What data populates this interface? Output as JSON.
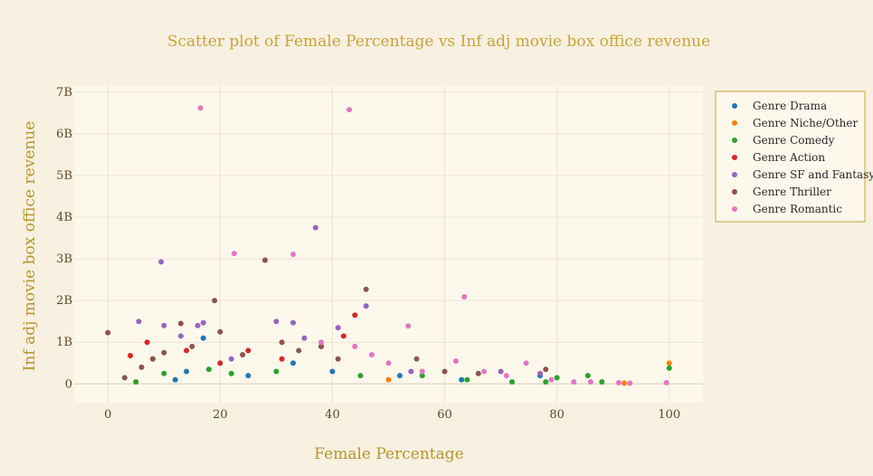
{
  "chart_data": {
    "type": "scatter",
    "title": "Scatter plot of Female Percentage vs Inf adj movie box office revenue",
    "xlabel": "Female Percentage",
    "ylabel": "Inf adj movie box office revenue",
    "xlim": [
      -6,
      106
    ],
    "ylim": [
      -0.45,
      7.15
    ],
    "x_ticks": [
      0,
      20,
      40,
      60,
      80,
      100
    ],
    "x_tick_labels": [
      "0",
      "20",
      "40",
      "60",
      "80",
      "100"
    ],
    "y_ticks": [
      0,
      1,
      2,
      3,
      4,
      5,
      6,
      7
    ],
    "y_tick_labels": [
      "0",
      "1B",
      "2B",
      "3B",
      "4B",
      "5B",
      "6B",
      "7B"
    ],
    "y_unit": "billions",
    "grid": true,
    "legend_position": "top-right",
    "series": [
      {
        "name": "Genre Drama",
        "color": "#1f77b4",
        "x": [
          12,
          14,
          17,
          25,
          33,
          40,
          52,
          63,
          77
        ],
        "y": [
          0.1,
          0.3,
          1.1,
          0.2,
          0.5,
          0.3,
          0.2,
          0.1,
          0.2
        ]
      },
      {
        "name": "Genre Niche/Other",
        "color": "#ff7f0e",
        "x": [
          5,
          8,
          50,
          92,
          100
        ],
        "y": [
          0.05,
          0.6,
          0.1,
          0.02,
          0.5
        ]
      },
      {
        "name": "Genre Comedy",
        "color": "#2ca02c",
        "x": [
          5,
          10,
          18,
          22,
          30,
          45,
          56,
          64,
          72,
          78,
          80,
          85.5,
          88,
          100
        ],
        "y": [
          0.05,
          0.25,
          0.35,
          0.25,
          0.3,
          0.2,
          0.2,
          0.1,
          0.05,
          0.05,
          0.15,
          0.2,
          0.05,
          0.38
        ]
      },
      {
        "name": "Genre Action",
        "color": "#d62728",
        "x": [
          4,
          7,
          14,
          20,
          25,
          31,
          38,
          42,
          44
        ],
        "y": [
          0.68,
          1.0,
          0.8,
          0.5,
          0.8,
          0.6,
          0.9,
          1.15,
          1.65
        ]
      },
      {
        "name": "Genre SF and Fantasy",
        "color": "#9467bd",
        "x": [
          5.5,
          9.5,
          10,
          13,
          16,
          17,
          22,
          30,
          33,
          35,
          37,
          41,
          46,
          54,
          70,
          77
        ],
        "y": [
          1.5,
          2.93,
          1.4,
          1.15,
          1.4,
          1.47,
          0.6,
          1.5,
          1.47,
          1.1,
          3.75,
          1.35,
          1.87,
          0.3,
          0.3,
          0.25
        ]
      },
      {
        "name": "Genre Thriller",
        "color": "#8c564b",
        "x": [
          0,
          3,
          6,
          8,
          10,
          13,
          15,
          19,
          20,
          24,
          28,
          31,
          34,
          38,
          41,
          46,
          55,
          60,
          66,
          78
        ],
        "y": [
          1.23,
          0.15,
          0.4,
          0.6,
          0.75,
          1.45,
          0.9,
          2.0,
          1.25,
          0.7,
          2.97,
          1.0,
          0.8,
          0.9,
          0.6,
          2.27,
          0.6,
          0.3,
          0.25,
          0.35
        ]
      },
      {
        "name": "Genre Romantic",
        "color": "#e377c2",
        "x": [
          16.5,
          43,
          22.5,
          33,
          53.5,
          63.5,
          38,
          44,
          47,
          50,
          56,
          62,
          67,
          71,
          74.5,
          79,
          83,
          86,
          91,
          93,
          99.5
        ],
        "y": [
          6.62,
          6.58,
          3.13,
          3.11,
          1.39,
          2.09,
          1.0,
          0.9,
          0.7,
          0.5,
          0.3,
          0.55,
          0.3,
          0.2,
          0.5,
          0.1,
          0.05,
          0.05,
          0.03,
          0.02,
          0.03
        ]
      }
    ]
  }
}
